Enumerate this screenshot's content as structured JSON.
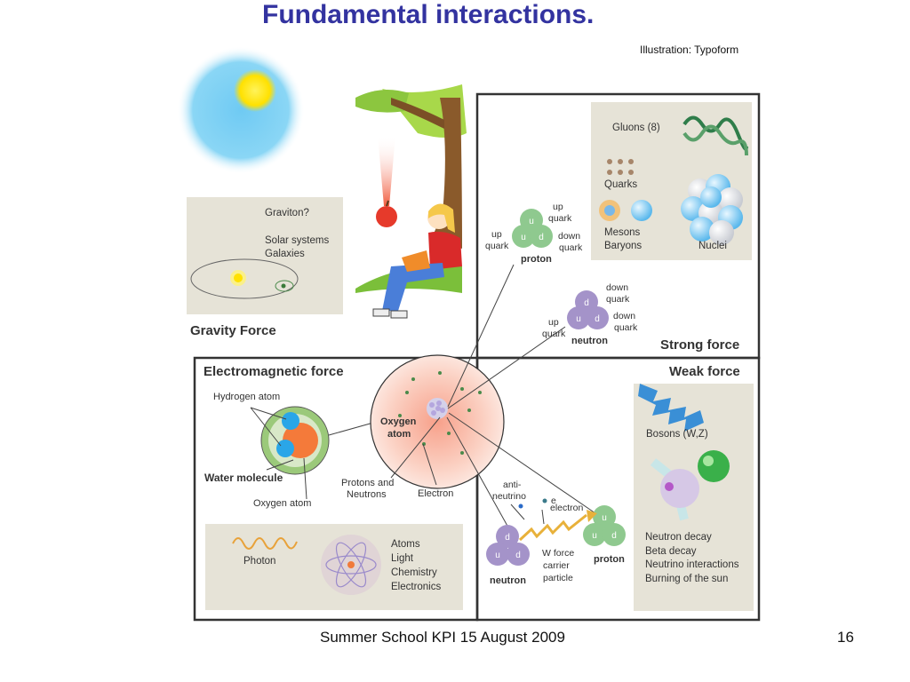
{
  "slide": {
    "title": "Fundamental interactions.",
    "credit": "Illustration: Typoform",
    "footer": "Summer School KPI 15 August 2009",
    "page_number": "16"
  },
  "gravity": {
    "heading": "Gravity Force",
    "graviton": "Graviton?",
    "solar_systems": "Solar systems",
    "galaxies": "Galaxies"
  },
  "strong": {
    "heading": "Strong force",
    "gluons": "Gluons (8)",
    "quarks": "Quarks",
    "mesons": "Mesons",
    "baryons": "Baryons",
    "nuclei": "Nuclei",
    "proton": {
      "label": "proton",
      "up1": "up",
      "quark1": "quark",
      "up2": "up",
      "quark2": "quark",
      "down": "down",
      "quark3": "quark",
      "q_top": "u",
      "q_left": "u",
      "q_right": "d"
    },
    "neutron": {
      "label": "neutron",
      "down1": "down",
      "quark1": "quark",
      "down2": "down",
      "quark2": "quark",
      "up": "up",
      "quark3": "quark",
      "q_top": "d",
      "q_left": "u",
      "q_right": "d"
    }
  },
  "electromagnetic": {
    "heading": "Electromagnetic force",
    "hydrogen_atom": "Hydrogen atom",
    "water_molecule": "Water molecule",
    "oxygen_atom": "Oxygen atom",
    "photon": "Photon",
    "atoms": "Atoms",
    "light": "Light",
    "chemistry": "Chemistry",
    "electronics": "Electronics"
  },
  "center": {
    "oxygen": "Oxygen",
    "atom": "atom",
    "protons_and": "Protons and",
    "neutrons": "Neutrons",
    "electron": "Electron"
  },
  "weak": {
    "heading": "Weak force",
    "bosons": "Bosons (W,Z)",
    "anti": "anti-",
    "neutrino": "neutrino",
    "e": "e",
    "electron": "electron",
    "w_force": "W force",
    "carrier": "carrier",
    "particle": "particle",
    "neutron": "neutron",
    "proton": "proton",
    "neutron_decay": "Neutron decay",
    "beta_decay": "Beta decay",
    "neutrino_interactions": "Neutrino interactions",
    "burning_sun": "Burning of the sun",
    "n_top": "d",
    "n_left": "u",
    "n_right": "d",
    "p_top": "u",
    "p_left": "u",
    "p_right": "d"
  },
  "colors": {
    "title": "#3333a0",
    "panel_fill": "#e6e3d7",
    "proton_quark": "#8fc98f",
    "neutron_quark": "#a493c9",
    "sky": "#8fd3f2",
    "sun": "#ffe100"
  }
}
